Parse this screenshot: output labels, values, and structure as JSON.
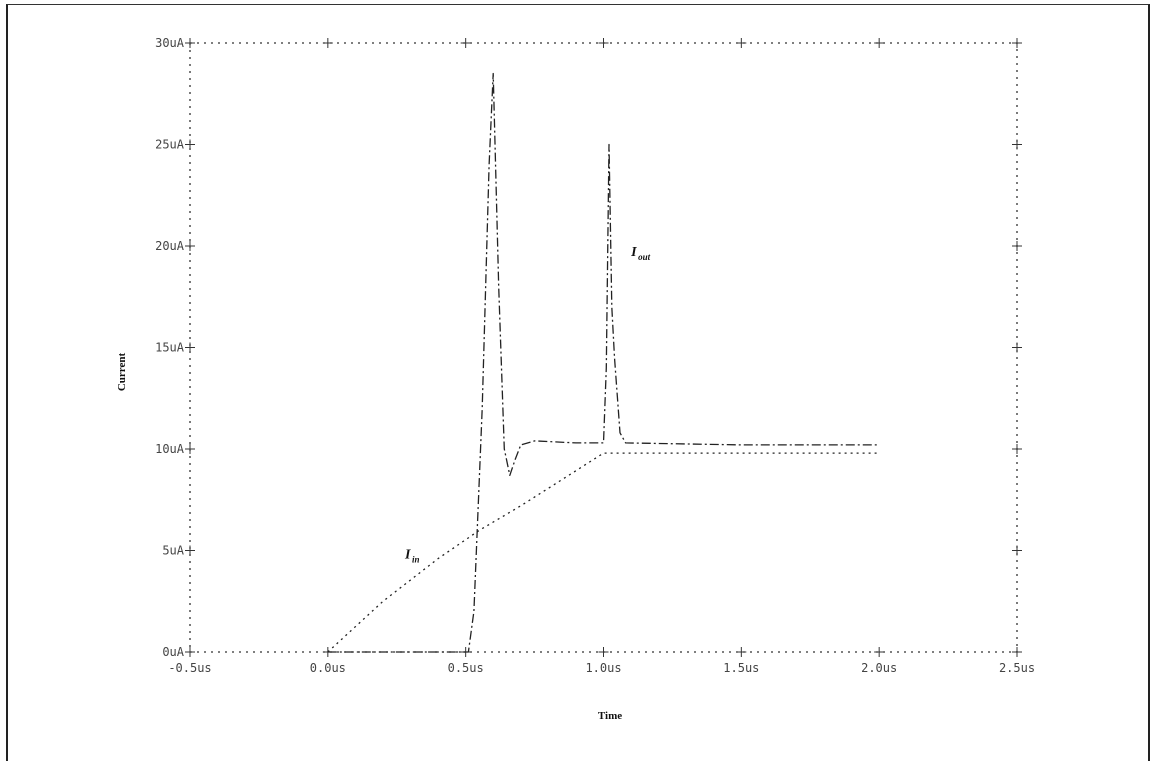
{
  "chart_data": {
    "type": "line",
    "title": "",
    "xlabel": "Time",
    "ylabel": "Current",
    "xlim": [
      -0.5,
      2.5
    ],
    "ylim": [
      0,
      30
    ],
    "x_unit": "us",
    "y_unit": "uA",
    "x_tick_labels": [
      "-0.5us",
      "0.0us",
      "0.5us",
      "1.0us",
      "1.5us",
      "2.0us",
      "2.5us"
    ],
    "x_tick_values": [
      -0.5,
      0.0,
      0.5,
      1.0,
      1.5,
      2.0,
      2.5
    ],
    "y_tick_labels": [
      "0uA",
      "5uA",
      "10uA",
      "15uA",
      "20uA",
      "25uA",
      "30uA"
    ],
    "y_tick_values": [
      0,
      5,
      10,
      15,
      20,
      25,
      30
    ],
    "grid": false,
    "legend": "none",
    "series": [
      {
        "name": "I_in",
        "label_main": "I",
        "label_sub": "in",
        "label_at": [
          0.28,
          4.6
        ],
        "style": "dotted",
        "x": [
          0.0,
          0.2,
          0.4,
          0.55,
          0.7,
          0.85,
          1.0,
          1.5,
          2.0
        ],
        "y": [
          0.0,
          2.5,
          4.6,
          6.0,
          7.2,
          8.5,
          9.8,
          9.8,
          9.8
        ]
      },
      {
        "name": "I_out",
        "label_main": "I",
        "label_sub": "out",
        "label_at": [
          1.1,
          19.5
        ],
        "style": "dashdot",
        "x": [
          0.0,
          0.51,
          0.53,
          0.56,
          0.585,
          0.6,
          0.62,
          0.64,
          0.66,
          0.68,
          0.7,
          0.75,
          0.9,
          1.0,
          1.01,
          1.02,
          1.03,
          1.04,
          1.06,
          1.08,
          1.5,
          2.0
        ],
        "y": [
          0.0,
          0.0,
          2.0,
          12.0,
          24.0,
          28.5,
          18.0,
          10.0,
          8.7,
          9.5,
          10.2,
          10.4,
          10.3,
          10.3,
          14.0,
          25.0,
          17.0,
          14.5,
          10.8,
          10.3,
          10.2,
          10.2
        ]
      }
    ]
  }
}
